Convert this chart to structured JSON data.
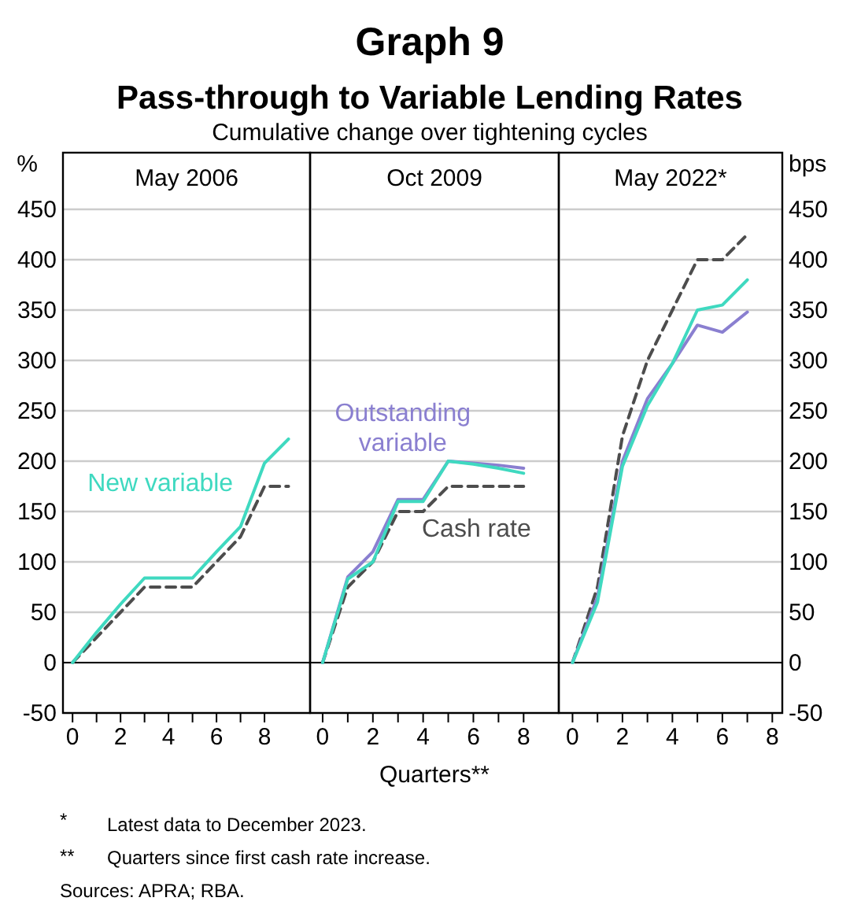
{
  "chart_data": [
    {
      "type": "line",
      "ylabel": "%",
      "legend_title": "May 2006",
      "grid": "y",
      "x": [
        0,
        1,
        2,
        3,
        4,
        5,
        6,
        7,
        8,
        9
      ],
      "xlim": [
        -0.4,
        9.9
      ],
      "xticks": [
        0,
        {
          "value": 1,
          "label": null
        },
        2,
        {
          "value": 3,
          "label": null
        },
        4,
        {
          "value": 5,
          "label": null
        },
        6,
        {
          "value": 7,
          "label": null
        },
        8
      ],
      "ylim": [
        -50,
        450
      ],
      "yticks": [
        -50,
        0,
        50,
        100,
        150,
        200,
        250,
        300,
        350,
        400,
        450
      ],
      "series": [
        {
          "color": "#4d4d4d",
          "line_style": "dashed",
          "values": [
            0,
            25,
            50,
            75,
            75,
            75,
            100,
            125,
            175,
            175
          ]
        },
        {
          "name": "New variable",
          "color": "#3fd9c0",
          "line_style": "solid",
          "values": [
            0,
            30,
            58,
            84,
            84,
            84,
            110,
            135,
            198,
            222
          ]
        }
      ]
    },
    {
      "type": "line",
      "title": "Graph 9",
      "subtitle": "Pass-through to Variable Lending Rates",
      "xlabel": "Quarters**",
      "annotations": [
        "Cumulative change over tightening cycles",
        "*",
        "Latest data to December 2023.",
        "**",
        "Quarters since first cash rate increase.",
        "Sources: APRA; RBA."
      ],
      "legend_title": "Oct 2009",
      "grid": "y",
      "tick_labels": "x",
      "x": [
        0,
        1,
        2,
        3,
        4,
        5,
        6,
        7,
        8
      ],
      "xlim": [
        -0.5,
        9.4
      ],
      "xticks": [
        0,
        {
          "value": 1,
          "label": null
        },
        2,
        {
          "value": 3,
          "label": null
        },
        4,
        {
          "value": 5,
          "label": null
        },
        6,
        {
          "value": 7,
          "label": null
        },
        8
      ],
      "ylim": [
        -50,
        450
      ],
      "yticks": [
        -50,
        0,
        50,
        100,
        150,
        200,
        250,
        300,
        350,
        400,
        450
      ],
      "series": [
        {
          "name": "Cash rate",
          "color": "#4d4d4d",
          "line_style": "dashed",
          "values": [
            0,
            75,
            100,
            150,
            150,
            175,
            175,
            175,
            175
          ]
        },
        {
          "name": "Outstanding variable",
          "color": "#8a7fd0",
          "line_style": "solid",
          "values": [
            0,
            85,
            110,
            162,
            162,
            200,
            198,
            196,
            193
          ]
        },
        {
          "color": "#3fd9c0",
          "line_style": "solid",
          "values": [
            0,
            83,
            100,
            160,
            160,
            200,
            197,
            193,
            188
          ]
        }
      ]
    },
    {
      "type": "line",
      "legend_title": "May 2022*",
      "grid": "y",
      "y2label": "bps",
      "x": [
        0,
        1,
        2,
        3,
        4,
        5,
        6,
        7
      ],
      "xlim": [
        -0.55,
        8.4
      ],
      "xticks": [
        0,
        {
          "value": 1,
          "label": null
        },
        2,
        {
          "value": 3,
          "label": null
        },
        4,
        {
          "value": 5,
          "label": null
        },
        6,
        {
          "value": 7,
          "label": null
        },
        8
      ],
      "y2lim": [
        -50,
        450
      ],
      "y2ticks": [
        -50,
        0,
        50,
        100,
        150,
        200,
        250,
        300,
        350,
        400,
        450
      ],
      "series": [
        {
          "axis": "y2",
          "color": "#4d4d4d",
          "line_style": "dashed",
          "values": [
            0,
            75,
            225,
            300,
            350,
            400,
            400,
            425
          ]
        },
        {
          "axis": "y2",
          "color": "#8a7fd0",
          "line_style": "solid",
          "values": [
            0,
            65,
            200,
            262,
            297,
            335,
            328,
            348
          ]
        },
        {
          "axis": "y2",
          "color": "#3fd9c0",
          "line_style": "solid",
          "values": [
            0,
            60,
            195,
            255,
            297,
            350,
            355,
            380
          ]
        }
      ]
    }
  ]
}
